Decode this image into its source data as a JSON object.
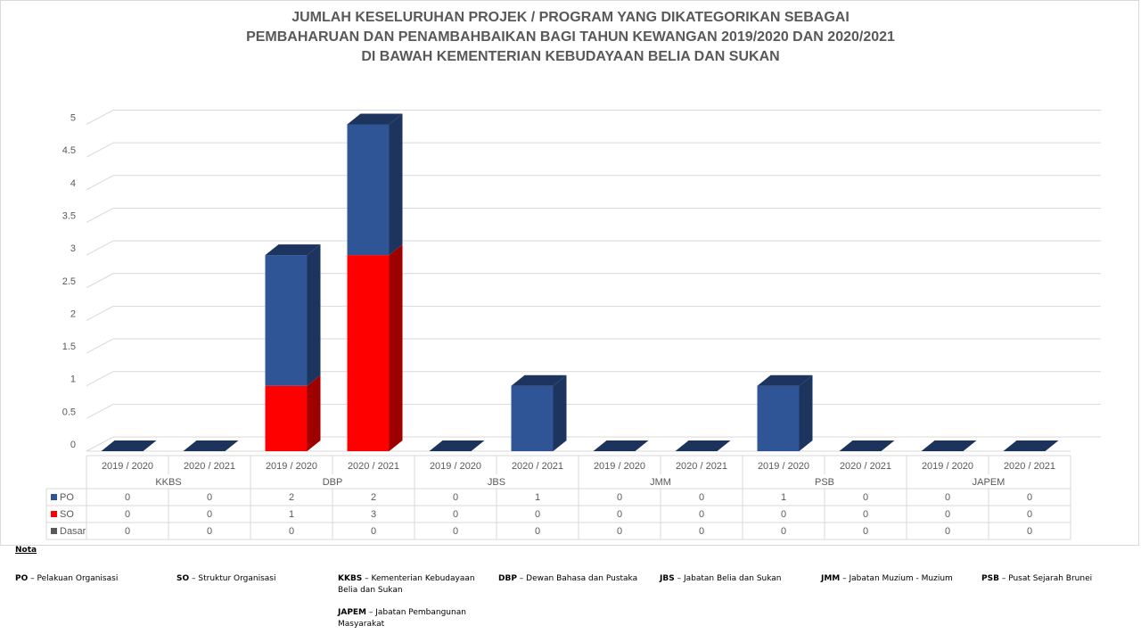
{
  "title_lines": [
    "JUMLAH KESELURUHAN PROJEK / PROGRAM YANG DIKATEGORIKAN SEBAGAI",
    "PEMBAHARUAN DAN PENAMBAHBAIKAN BAGI TAHUN KEWANGAN 2019/2020 DAN 2020/2021",
    "DI BAWAH KEMENTERIAN KEBUDAYAAN BELIA DAN SUKAN"
  ],
  "chart_data": {
    "type": "bar",
    "stacked": true,
    "three_d": true,
    "title": "JUMLAH KESELURUHAN PROJEK / PROGRAM YANG DIKATEGORIKAN SEBAGAI PEMBAHARUAN DAN PENAMBAHBAIKAN BAGI TAHUN KEWANGAN 2019/2020 DAN 2020/2021 DI BAWAH KEMENTERIAN KEBUDAYAAN BELIA DAN SUKAN",
    "groups": [
      "KKBS",
      "DBP",
      "JBS",
      "JMM",
      "PSB",
      "JAPEM"
    ],
    "categories": [
      "2019 / 2020",
      "2020 / 2021",
      "2019 / 2020",
      "2020 / 2021",
      "2019 / 2020",
      "2020 / 2021",
      "2019 / 2020",
      "2020 / 2021",
      "2019 / 2020",
      "2020 / 2021",
      "2019 / 2020",
      "2020 / 2021"
    ],
    "series": [
      {
        "name": "Dasar",
        "color": "#595959",
        "values": [
          0,
          0,
          0,
          0,
          0,
          0,
          0,
          0,
          0,
          0,
          0,
          0
        ]
      },
      {
        "name": "SO",
        "color": "#ff0000",
        "values": [
          0,
          0,
          1,
          3,
          0,
          0,
          0,
          0,
          0,
          0,
          0,
          0
        ]
      },
      {
        "name": "PO",
        "color": "#2f5597",
        "values": [
          0,
          0,
          2,
          2,
          0,
          1,
          0,
          0,
          1,
          0,
          0,
          0
        ]
      }
    ],
    "table_order": [
      "PO",
      "SO",
      "Dasar"
    ],
    "y_ticks": [
      "0",
      "0.5",
      "1",
      "1.5",
      "2",
      "2.5",
      "3",
      "3.5",
      "4",
      "4.5",
      "5"
    ],
    "ylim": [
      0,
      5
    ],
    "grid": true,
    "legend": "data-table"
  },
  "notes": {
    "heading": "Nota",
    "items": [
      {
        "abbr": "PO",
        "text": "Pelakuan Organisasi"
      },
      {
        "abbr": "SO",
        "text": "Struktur Organisasi"
      },
      {
        "abbr": "KKBS",
        "text": "Kementerian Kebudayaan Belia dan Sukan"
      },
      {
        "abbr": "DBP",
        "text": "Dewan Bahasa dan Pustaka"
      },
      {
        "abbr": "JBS",
        "text": "Jabatan Belia dan Sukan"
      },
      {
        "abbr": "JMM",
        "text": "Jabatan Muzium - Muzium"
      },
      {
        "abbr": "PSB",
        "text": "Pusat Sejarah Brunei"
      },
      {
        "abbr": "JAPEM",
        "text": "Jabatan Pembangunan Masyarakat"
      }
    ]
  }
}
